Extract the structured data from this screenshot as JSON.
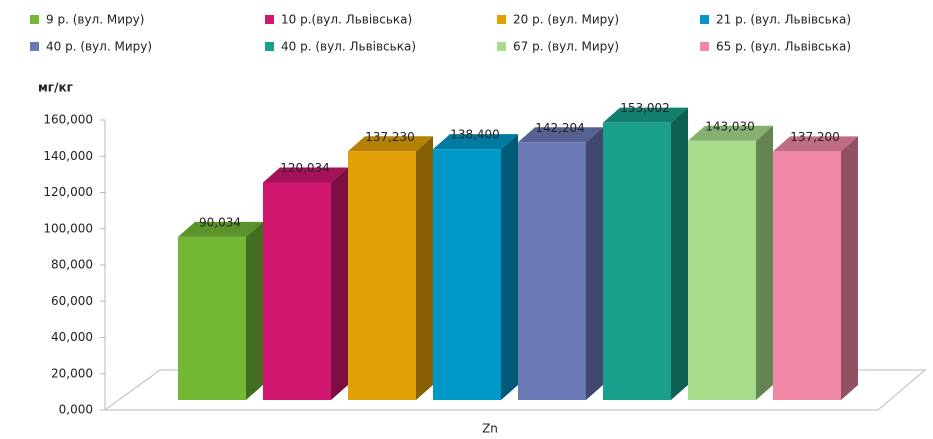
{
  "chart_data": {
    "type": "bar3d",
    "y_axis_label": "мг/кг",
    "categories": [
      "Zn"
    ],
    "series": [
      {
        "name": "9 р. (вул. Миру)",
        "color": "#72b834",
        "values": [
          90.034
        ],
        "value_labels": [
          "90,034"
        ]
      },
      {
        "name": "10 р.(вул. Львівська)",
        "color": "#d0166f",
        "values": [
          120.034
        ],
        "value_labels": [
          "120,034"
        ]
      },
      {
        "name": "20 р. (вул. Миру)",
        "color": "#e2a007",
        "values": [
          137.23
        ],
        "value_labels": [
          "137,230"
        ]
      },
      {
        "name": "21 р. (вул. Львівська)",
        "color": "#0098c9",
        "values": [
          138.4
        ],
        "value_labels": [
          "138,400"
        ]
      },
      {
        "name": "40 р. (вул. Миру)",
        "color": "#6b7ab5",
        "values": [
          142.204
        ],
        "value_labels": [
          "142,204"
        ]
      },
      {
        "name": "40 р. (вул. Львівська)",
        "color": "#18a08b",
        "values": [
          153.002
        ],
        "value_labels": [
          "153,002"
        ]
      },
      {
        "name": "67 р. (вул. Миру)",
        "color": "#a8dc8b",
        "values": [
          143.03
        ],
        "value_labels": [
          "143,030"
        ]
      },
      {
        "name": "65 р. (вул. Львівська)",
        "color": "#f087a5",
        "values": [
          137.2
        ],
        "value_labels": [
          "137,200"
        ]
      }
    ],
    "ylim": [
      0,
      160
    ],
    "yticks": [
      {
        "value": 0,
        "label": "0,000"
      },
      {
        "value": 20,
        "label": "20,000"
      },
      {
        "value": 40,
        "label": "40,000"
      },
      {
        "value": 60,
        "label": "60,000"
      },
      {
        "value": 80,
        "label": "80,000"
      },
      {
        "value": 100,
        "label": "100,000"
      },
      {
        "value": 120,
        "label": "120,000"
      },
      {
        "value": 140,
        "label": "140,000"
      },
      {
        "value": 160,
        "label": "160,000"
      }
    ],
    "legend": "top"
  }
}
